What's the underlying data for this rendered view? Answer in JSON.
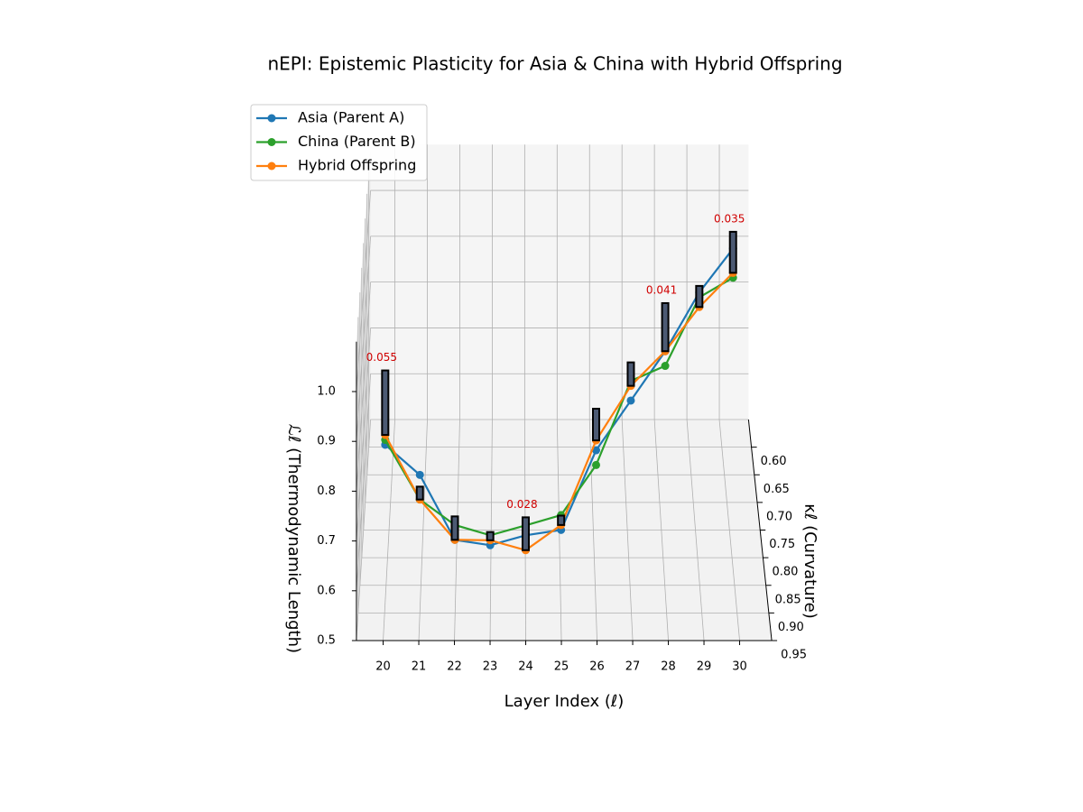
{
  "chart_data": {
    "type": "line3d",
    "title": "nEPI: Epistemic Plasticity for Asia & China with Hybrid Offspring",
    "xlabel": "Layer Index (ℓ)",
    "ylabel": "κℓ (Curvature)",
    "zlabel": "ℒℓ (Thermodynamic Length)",
    "x": [
      20,
      21,
      22,
      23,
      24,
      25,
      26,
      27,
      28,
      29,
      30
    ],
    "xlim": [
      19.25,
      30.9
    ],
    "xticks": [
      20,
      21,
      22,
      23,
      24,
      25,
      26,
      27,
      28,
      29,
      30
    ],
    "ylim": [
      0.55,
      0.95
    ],
    "yticks": [
      {
        "value": 0.6,
        "label": "0.60"
      },
      0.65,
      {
        "value": 0.7,
        "label": "0.70"
      },
      0.75,
      {
        "value": 0.8,
        "label": "0.80"
      },
      0.85,
      {
        "value": 0.9,
        "label": "0.90"
      },
      0.95
    ],
    "zlim": [
      0.5,
      1.1
    ],
    "zticks": [
      0.5,
      0.6,
      0.7,
      0.8,
      0.9,
      {
        "value": 1.0,
        "label": "1.0"
      }
    ],
    "grid": true,
    "legend": "upper left",
    "series": [
      {
        "name": "Asia (Parent A)",
        "color": "#1f77b4",
        "y": [
          0.88,
          0.9,
          0.92,
          0.93,
          0.93,
          0.92,
          0.9,
          0.88,
          0.86,
          0.84,
          0.82
        ],
        "z": [
          0.82,
          0.78,
          0.67,
          0.67,
          0.69,
          0.69,
          0.83,
          0.91,
          0.99,
          1.09,
          1.16
        ]
      },
      {
        "name": "China (Parent B)",
        "color": "#2ca02c",
        "y": [
          0.88,
          0.9,
          0.92,
          0.93,
          0.93,
          0.92,
          0.9,
          0.88,
          0.86,
          0.84,
          0.82
        ],
        "z": [
          0.83,
          0.73,
          0.7,
          0.69,
          0.71,
          0.72,
          0.8,
          0.95,
          0.96,
          1.08,
          1.1
        ]
      },
      {
        "name": "Hybrid Offspring",
        "color": "#ff7f0e",
        "y": [
          0.88,
          0.9,
          0.92,
          0.93,
          0.93,
          0.92,
          0.9,
          0.88,
          0.86,
          0.84,
          0.82
        ],
        "z": [
          0.84,
          0.73,
          0.67,
          0.68,
          0.66,
          0.7,
          0.85,
          0.94,
          0.99,
          1.06,
          1.11
        ]
      }
    ],
    "plasticity": {
      "color": "#4c5a73",
      "label_color": "#d00000",
      "values": [
        0.055,
        0.011,
        0.02,
        0.007,
        0.028,
        0.008,
        0.027,
        0.02,
        0.041,
        0.018,
        0.035
      ],
      "value_labels": [
        "0.055",
        null,
        null,
        null,
        "0.028",
        null,
        null,
        null,
        "0.041",
        null,
        "0.035"
      ]
    }
  }
}
